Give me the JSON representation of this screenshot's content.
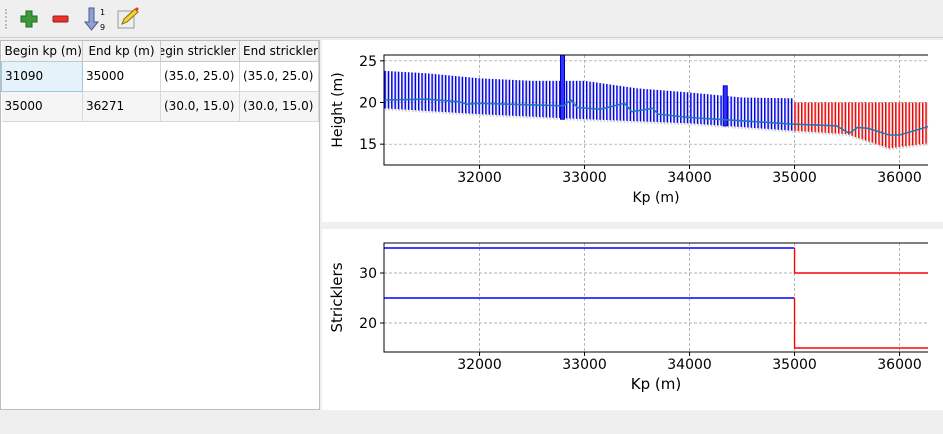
{
  "toolbar": {
    "items": [
      {
        "name": "add-icon"
      },
      {
        "name": "remove-icon"
      },
      {
        "name": "sort-icon",
        "label_top": "1",
        "label_bottom": "9"
      },
      {
        "name": "edit-icon"
      }
    ]
  },
  "table": {
    "headers": [
      "Begin kp (m)",
      "End kp (m)",
      "Begin strickler",
      "End strickler"
    ],
    "rows": [
      [
        "31090",
        "35000",
        "(35.0, 25.0)",
        "(35.0, 25.0)"
      ],
      [
        "35000",
        "36271",
        "(30.0, 15.0)",
        "(30.0, 15.0)"
      ]
    ]
  },
  "colors": {
    "blue": "#0000ff",
    "red": "#ff0000",
    "center": "#1f77b4"
  },
  "chart_data": [
    {
      "type": "line",
      "xlabel": "Kp (m)",
      "ylabel": "Height (m)",
      "xlim": [
        31090,
        36271
      ],
      "ylim": [
        12.5,
        25.7
      ],
      "xticks": [
        32000,
        33000,
        34000,
        35000,
        36000
      ],
      "yticks": [
        15,
        20,
        25
      ],
      "grid": true,
      "center": [
        [
          31090,
          20.3
        ],
        [
          31500,
          20.4
        ],
        [
          31800,
          20.1
        ],
        [
          31880,
          19.8
        ],
        [
          32000,
          19.9
        ],
        [
          32800,
          19.6
        ],
        [
          32870,
          20.3
        ],
        [
          32930,
          19.4
        ],
        [
          33150,
          19.2
        ],
        [
          33380,
          19.9
        ],
        [
          33450,
          18.9
        ],
        [
          33650,
          19.3
        ],
        [
          33700,
          18.6
        ],
        [
          34000,
          18.2
        ],
        [
          34500,
          17.8
        ],
        [
          35000,
          17.4
        ],
        [
          35400,
          17.2
        ],
        [
          35520,
          16.3
        ],
        [
          35600,
          17.0
        ],
        [
          35700,
          16.9
        ],
        [
          35900,
          16.1
        ],
        [
          36000,
          16.1
        ],
        [
          36271,
          17.1
        ]
      ],
      "top": [
        [
          31090,
          23.8
        ],
        [
          31500,
          23.5
        ],
        [
          32000,
          22.9
        ],
        [
          32500,
          22.6
        ],
        [
          33000,
          22.6
        ],
        [
          33500,
          21.7
        ],
        [
          34000,
          21.2
        ],
        [
          34500,
          20.6
        ],
        [
          35000,
          20.5
        ],
        [
          35001,
          20.0
        ],
        [
          36271,
          20.0
        ]
      ],
      "bottom": [
        [
          31090,
          19.3
        ],
        [
          32000,
          18.6
        ],
        [
          33000,
          18.0
        ],
        [
          34000,
          17.5
        ],
        [
          35000,
          16.6
        ],
        [
          35500,
          16.2
        ],
        [
          35900,
          14.5
        ],
        [
          36271,
          15.1
        ]
      ],
      "spikes": [
        [
          32790,
          18.0,
          25.7
        ],
        [
          34340,
          17.2,
          22.0
        ]
      ],
      "split_kp": 35000
    },
    {
      "type": "line",
      "xlabel": "Kp (m)",
      "ylabel": "Stricklers",
      "xlim": [
        31090,
        36271
      ],
      "ylim": [
        14.2,
        36
      ],
      "xticks": [
        32000,
        33000,
        34000,
        35000,
        36000
      ],
      "yticks": [
        20,
        30
      ],
      "grid": true,
      "series": [
        {
          "color": "#0000ff",
          "points": [
            [
              31090,
              35
            ],
            [
              35000,
              35
            ]
          ]
        },
        {
          "color": "#0000ff",
          "points": [
            [
              31090,
              25
            ],
            [
              35000,
              25
            ]
          ]
        },
        {
          "color": "#ff0000",
          "points": [
            [
              35000,
              35
            ],
            [
              35000,
              30
            ],
            [
              36271,
              30
            ]
          ]
        },
        {
          "color": "#ff0000",
          "points": [
            [
              35000,
              25
            ],
            [
              35000,
              15
            ],
            [
              36271,
              15
            ]
          ]
        }
      ]
    }
  ]
}
